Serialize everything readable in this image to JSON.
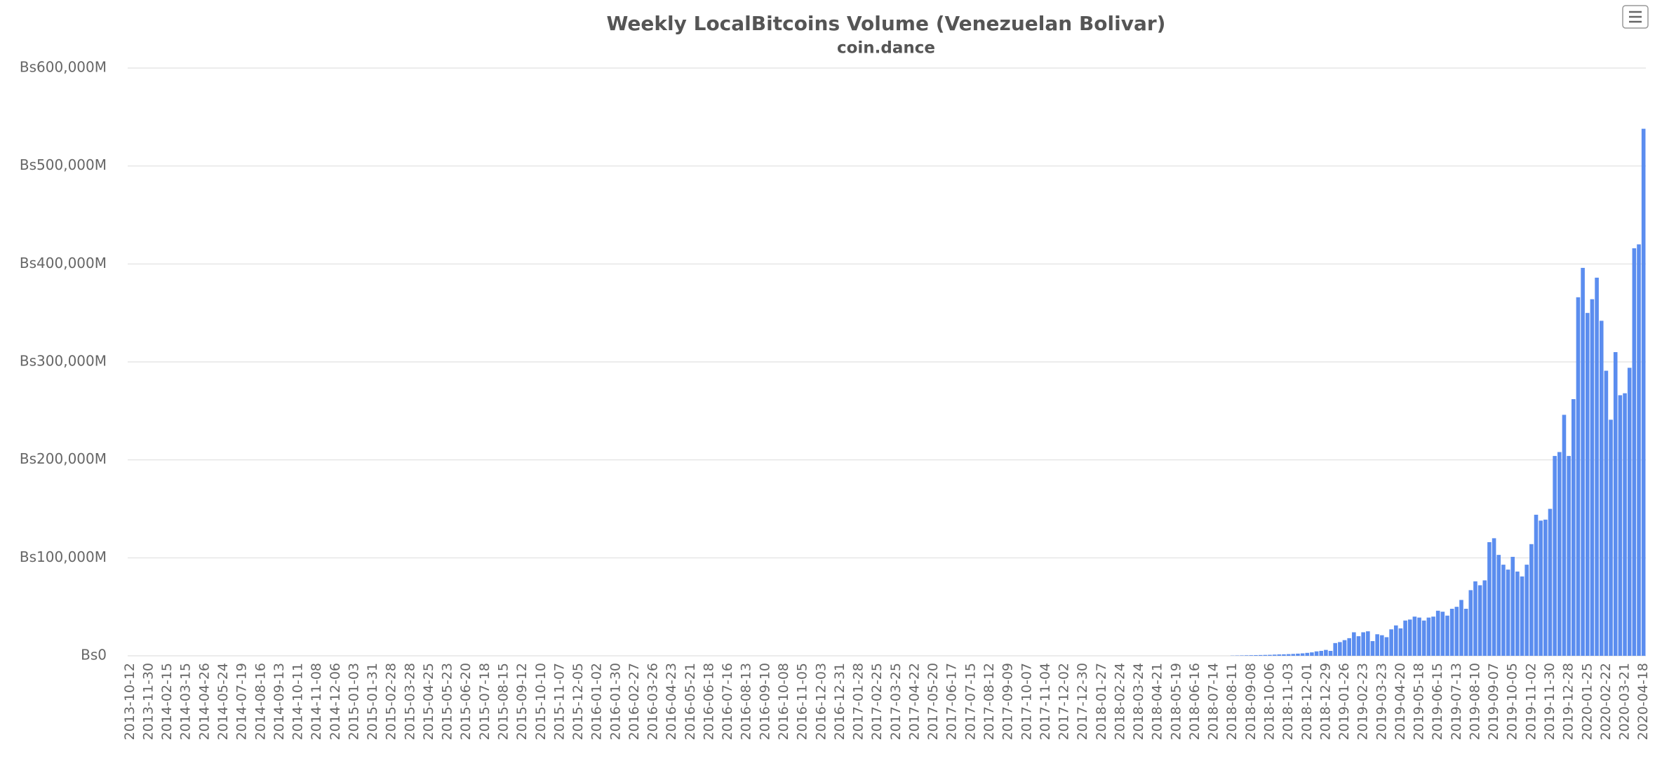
{
  "chart_data": {
    "type": "bar",
    "title": "Weekly LocalBitcoins Volume (Venezuelan Bolivar)",
    "subtitle": "coin.dance",
    "color": "#5b8def",
    "grid": true,
    "ylim": [
      0,
      600000
    ],
    "yticks": [
      {
        "value": 0,
        "label": "Bs0"
      },
      {
        "value": 100000,
        "label": "Bs100,000M"
      },
      {
        "value": 200000,
        "label": "Bs200,000M"
      },
      {
        "value": 300000,
        "label": "Bs300,000M"
      },
      {
        "value": 400000,
        "label": "Bs400,000M"
      },
      {
        "value": 500000,
        "label": "Bs500,000M"
      },
      {
        "value": 600000,
        "label": "Bs600,000M"
      }
    ],
    "categories": [
      "2013-10-12",
      null,
      null,
      null,
      "2013-11-30",
      null,
      null,
      null,
      "2014-02-15",
      null,
      null,
      null,
      "2014-03-15",
      null,
      null,
      null,
      "2014-04-26",
      null,
      null,
      null,
      "2014-05-24",
      null,
      null,
      null,
      "2014-07-19",
      null,
      null,
      null,
      "2014-08-16",
      null,
      null,
      null,
      "2014-09-13",
      null,
      null,
      null,
      "2014-10-11",
      null,
      null,
      null,
      "2014-11-08",
      null,
      null,
      null,
      "2014-12-06",
      null,
      null,
      null,
      "2015-01-03",
      null,
      null,
      null,
      "2015-01-31",
      null,
      null,
      null,
      "2015-02-28",
      null,
      null,
      null,
      "2015-03-28",
      null,
      null,
      null,
      "2015-04-25",
      null,
      null,
      null,
      "2015-05-23",
      null,
      null,
      null,
      "2015-06-20",
      null,
      null,
      null,
      "2015-07-18",
      null,
      null,
      null,
      "2015-08-15",
      null,
      null,
      null,
      "2015-09-12",
      null,
      null,
      null,
      "2015-10-10",
      null,
      null,
      null,
      "2015-11-07",
      null,
      null,
      null,
      "2015-12-05",
      null,
      null,
      null,
      "2016-01-02",
      null,
      null,
      null,
      "2016-01-30",
      null,
      null,
      null,
      "2016-02-27",
      null,
      null,
      null,
      "2016-03-26",
      null,
      null,
      null,
      "2016-04-23",
      null,
      null,
      null,
      "2016-05-21",
      null,
      null,
      null,
      "2016-06-18",
      null,
      null,
      null,
      "2016-07-16",
      null,
      null,
      null,
      "2016-08-13",
      null,
      null,
      null,
      "2016-09-10",
      null,
      null,
      null,
      "2016-10-08",
      null,
      null,
      null,
      "2016-11-05",
      null,
      null,
      null,
      "2016-12-03",
      null,
      null,
      null,
      "2016-12-31",
      null,
      null,
      null,
      "2017-01-28",
      null,
      null,
      null,
      "2017-02-25",
      null,
      null,
      null,
      "2017-03-25",
      null,
      null,
      null,
      "2017-04-22",
      null,
      null,
      null,
      "2017-05-20",
      null,
      null,
      null,
      "2017-06-17",
      null,
      null,
      null,
      "2017-07-15",
      null,
      null,
      null,
      "2017-08-12",
      null,
      null,
      null,
      "2017-09-09",
      null,
      null,
      null,
      "2017-10-07",
      null,
      null,
      null,
      "2017-11-04",
      null,
      null,
      null,
      "2017-12-02",
      null,
      null,
      null,
      "2017-12-30",
      null,
      null,
      null,
      "2018-01-27",
      null,
      null,
      null,
      "2018-02-24",
      null,
      null,
      null,
      "2018-03-24",
      null,
      null,
      null,
      "2018-04-21",
      null,
      null,
      null,
      "2018-05-19",
      null,
      null,
      null,
      "2018-06-16",
      null,
      null,
      null,
      "2018-07-14",
      null,
      null,
      null,
      "2018-08-11",
      null,
      null,
      null,
      "2018-09-08",
      null,
      null,
      null,
      "2018-10-06",
      null,
      null,
      null,
      "2018-11-03",
      null,
      null,
      null,
      "2018-12-01",
      null,
      null,
      null,
      "2018-12-29",
      null,
      null,
      null,
      "2019-01-26",
      null,
      null,
      null,
      "2019-02-23",
      null,
      null,
      null,
      "2019-03-23",
      null,
      null,
      null,
      "2019-04-20",
      null,
      null,
      null,
      "2019-05-18",
      null,
      null,
      null,
      "2019-06-15",
      null,
      null,
      null,
      "2019-07-13",
      null,
      null,
      null,
      "2019-08-10",
      null,
      null,
      null,
      "2019-09-07",
      null,
      null,
      null,
      "2019-10-05",
      null,
      null,
      null,
      "2019-11-02",
      null,
      null,
      null,
      "2019-11-30",
      null,
      null,
      null,
      "2019-12-28",
      null,
      null,
      null,
      "2020-01-25",
      null,
      null,
      null,
      "2020-02-22",
      null,
      null,
      null,
      "2020-03-21",
      null,
      null,
      null,
      "2020-04-18"
    ],
    "values": [
      0,
      0,
      0,
      0,
      0,
      0,
      0,
      0,
      0,
      0,
      0,
      0,
      0,
      0,
      0,
      0,
      0,
      0,
      0,
      0,
      0,
      0,
      0,
      0,
      0,
      0,
      0,
      0,
      0,
      0,
      0,
      0,
      0,
      0,
      0,
      0,
      0,
      0,
      0,
      0,
      0,
      0,
      0,
      0,
      0,
      0,
      0,
      0,
      0,
      0,
      0,
      0,
      0,
      0,
      0,
      0,
      0,
      0,
      0,
      0,
      0,
      0,
      0,
      0,
      0,
      0,
      0,
      0,
      0,
      0,
      0,
      0,
      0,
      0,
      0,
      0,
      0,
      0,
      0,
      0,
      0,
      0,
      0,
      0,
      0,
      0,
      0,
      0,
      0,
      0,
      0,
      0,
      0,
      0,
      0,
      0,
      0,
      0,
      0,
      0,
      0,
      0,
      0,
      0,
      0,
      0,
      0,
      0,
      0,
      0,
      0,
      0,
      0,
      0,
      0,
      0,
      0,
      0,
      0,
      0,
      0,
      0,
      0,
      0,
      0,
      0,
      0,
      0,
      0,
      0,
      0,
      0,
      0,
      0,
      0,
      0,
      0,
      0,
      0,
      0,
      0,
      0,
      0,
      0,
      0,
      0,
      0,
      0,
      0,
      0,
      0,
      0,
      0,
      0,
      0,
      0,
      0,
      0,
      0,
      0,
      0,
      0,
      0,
      0,
      0,
      0,
      0,
      0,
      0,
      0,
      0,
      0,
      0,
      0,
      0,
      0,
      0,
      0,
      0,
      0,
      0,
      0,
      0,
      0,
      0,
      0,
      0,
      0,
      0,
      0,
      0,
      0,
      0,
      0,
      0,
      0,
      0,
      0,
      0,
      0,
      0,
      0,
      0,
      0,
      0,
      0,
      0,
      0,
      0,
      0,
      0,
      0,
      0,
      0,
      0,
      0,
      0,
      0,
      0,
      0,
      0,
      0,
      0,
      0,
      0,
      0,
      0,
      0,
      0,
      0,
      0,
      0,
      0,
      0,
      0,
      0,
      200,
      300,
      400,
      500,
      600,
      700,
      800,
      900,
      1000,
      1200,
      1400,
      1500,
      1700,
      1900,
      2200,
      2500,
      3000,
      3500,
      4500,
      5000,
      6000,
      5000,
      13000,
      14000,
      16000,
      18000,
      24000,
      20000,
      24000,
      25000,
      15000,
      22000,
      21000,
      19000,
      27000,
      31000,
      28000,
      36000,
      37000,
      40000,
      39000,
      36000,
      39000,
      40000,
      46000,
      45000,
      41000,
      48000,
      50000,
      57000,
      48000,
      67000,
      76000,
      72000,
      77000,
      116000,
      120000,
      103000,
      93000,
      88000,
      101000,
      86000,
      81000,
      93000,
      114000,
      144000,
      138000,
      139000,
      150000,
      204000,
      208000,
      246000,
      204000,
      262000,
      366000,
      396000,
      350000,
      364000,
      386000,
      342000,
      291000,
      241000,
      310000,
      266000,
      268000,
      294000,
      416000,
      420000,
      538000
    ]
  }
}
